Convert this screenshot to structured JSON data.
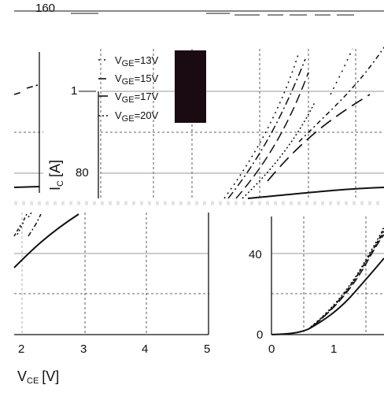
{
  "top_strip": {
    "label": "160"
  },
  "charts": [
    {
      "id": "top-chart",
      "ylabel_main": "I",
      "ylabel_sub": "C",
      "ylabel_unit": "[A]",
      "yticks": [
        "1",
        "80"
      ],
      "legend": [
        {
          "main": "V",
          "sub": "GE",
          "value": "=13V",
          "dash": "2 5"
        },
        {
          "main": "V",
          "sub": "GE",
          "value": "=15V",
          "dash": "10 4 2 4"
        },
        {
          "main": "V",
          "sub": "GE",
          "value": "=17V",
          "dash": "12 6"
        },
        {
          "main": "V",
          "sub": "GE",
          "value": "=20V",
          "dash": "2 3"
        }
      ]
    },
    {
      "id": "bottom-left-chart",
      "xticks": [
        "2",
        "3",
        "4",
        "5"
      ],
      "xlabel_main": "V",
      "xlabel_sub": "CE",
      "xlabel_unit": "[V]"
    },
    {
      "id": "bottom-right-chart",
      "xticks": [
        "0",
        "1"
      ],
      "yticks": [
        "40",
        "0"
      ]
    }
  ],
  "chart_data": [
    {
      "type": "line",
      "title": "",
      "xlabel": "",
      "ylabel": "IC [A]",
      "series": [
        {
          "name": "VGE=13V",
          "points": [
            [
              0,
              0
            ],
            [
              1,
              1
            ],
            [
              2,
              2.2
            ],
            [
              3,
              3.4
            ]
          ]
        },
        {
          "name": "VGE=15V",
          "points": [
            [
              0,
              0
            ],
            [
              1,
              1.2
            ],
            [
              2,
              2.6
            ],
            [
              3,
              4.0
            ]
          ]
        },
        {
          "name": "VGE=17V",
          "points": [
            [
              0,
              0
            ],
            [
              1,
              1.1
            ],
            [
              2,
              2.4
            ],
            [
              3,
              3.6
            ]
          ]
        },
        {
          "name": "VGE=20V",
          "points": [
            [
              0,
              0
            ],
            [
              1,
              1.3
            ],
            [
              2,
              2.8
            ],
            [
              3,
              4.3
            ]
          ]
        }
      ]
    },
    {
      "type": "line",
      "title": "",
      "xlabel": "VCE [V]",
      "ylabel": "",
      "x_range": [
        1.8,
        5
      ],
      "series": [
        {
          "name": "",
          "points": [
            [
              1.8,
              36
            ],
            [
              2.0,
              44
            ],
            [
              2.5,
              60
            ],
            [
              3.0,
              70
            ]
          ]
        }
      ]
    },
    {
      "type": "line",
      "title": "",
      "xlabel": "",
      "ylabel": "",
      "x_range": [
        0,
        1.8
      ],
      "y_range": [
        0,
        60
      ],
      "series": [
        {
          "name": "",
          "points": [
            [
              0,
              0
            ],
            [
              0.5,
              0.4
            ],
            [
              0.7,
              2
            ],
            [
              1.0,
              9
            ],
            [
              1.3,
              18
            ],
            [
              1.6,
              27
            ],
            [
              1.8,
              34
            ]
          ]
        }
      ]
    }
  ]
}
